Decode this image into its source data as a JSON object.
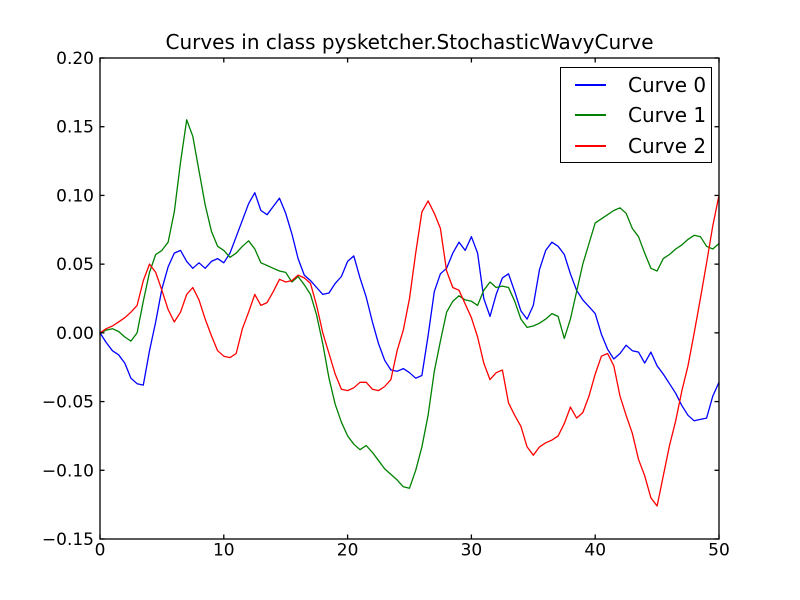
{
  "title": "Curves in class pysketcher.StochasticWavyCurve",
  "axes": {
    "x_tick_labels": [
      "0",
      "10",
      "20",
      "30",
      "40",
      "50"
    ],
    "y_tick_labels": [
      "0.20",
      "0.15",
      "0.10",
      "0.05",
      "0.00",
      "−0.05",
      "−0.10",
      "−0.15"
    ],
    "axis_color": "#000000",
    "background": "#ffffff"
  },
  "legend": {
    "position": "upper right",
    "entries": [
      {
        "label": "Curve 0",
        "color": "#0000ff"
      },
      {
        "label": "Curve 1",
        "color": "#008000"
      },
      {
        "label": "Curve 2",
        "color": "#ff0000"
      }
    ]
  },
  "chart_data": {
    "type": "line",
    "title": "Curves in class pysketcher.StochasticWavyCurve",
    "xlabel": "",
    "ylabel": "",
    "xlim": [
      0,
      50
    ],
    "ylim": [
      -0.15,
      0.2
    ],
    "x_ticks": [
      0,
      10,
      20,
      30,
      40,
      50
    ],
    "y_ticks": [
      0.2,
      0.15,
      0.1,
      0.05,
      0.0,
      -0.05,
      -0.1,
      -0.15
    ],
    "grid": false,
    "legend_position": "upper right",
    "x_start": 0,
    "x_step": 0.5,
    "series": [
      {
        "name": "Curve 0",
        "color": "#0000ff",
        "values": [
          0.0,
          -0.007,
          -0.013,
          -0.016,
          -0.022,
          -0.033,
          -0.037,
          -0.038,
          -0.013,
          0.008,
          0.032,
          0.048,
          0.058,
          0.06,
          0.052,
          0.047,
          0.051,
          0.047,
          0.052,
          0.054,
          0.051,
          0.058,
          0.07,
          0.082,
          0.094,
          0.102,
          0.089,
          0.086,
          0.092,
          0.098,
          0.087,
          0.072,
          0.054,
          0.042,
          0.038,
          0.033,
          0.028,
          0.029,
          0.036,
          0.041,
          0.052,
          0.056,
          0.04,
          0.026,
          0.008,
          -0.008,
          -0.02,
          -0.027,
          -0.028,
          -0.026,
          -0.029,
          -0.033,
          -0.031,
          -0.002,
          0.03,
          0.043,
          0.047,
          0.058,
          0.066,
          0.06,
          0.07,
          0.058,
          0.025,
          0.012,
          0.028,
          0.04,
          0.043,
          0.03,
          0.016,
          0.01,
          0.02,
          0.046,
          0.06,
          0.066,
          0.063,
          0.057,
          0.043,
          0.031,
          0.024,
          0.019,
          0.014,
          -0.001,
          -0.012,
          -0.019,
          -0.015,
          -0.009,
          -0.013,
          -0.014,
          -0.022,
          -0.014,
          -0.024,
          -0.03,
          -0.037,
          -0.044,
          -0.053,
          -0.06,
          -0.064,
          -0.063,
          -0.062,
          -0.046,
          -0.036
        ]
      },
      {
        "name": "Curve 1",
        "color": "#008000",
        "values": [
          0.0,
          0.002,
          0.003,
          0.001,
          -0.003,
          -0.006,
          0.0,
          0.023,
          0.044,
          0.057,
          0.06,
          0.066,
          0.088,
          0.124,
          0.155,
          0.143,
          0.118,
          0.093,
          0.074,
          0.063,
          0.06,
          0.055,
          0.058,
          0.063,
          0.067,
          0.061,
          0.051,
          0.049,
          0.047,
          0.045,
          0.044,
          0.037,
          0.041,
          0.035,
          0.028,
          0.013,
          -0.008,
          -0.033,
          -0.052,
          -0.065,
          -0.075,
          -0.081,
          -0.085,
          -0.082,
          -0.087,
          -0.093,
          -0.099,
          -0.103,
          -0.107,
          -0.112,
          -0.113,
          -0.1,
          -0.083,
          -0.06,
          -0.028,
          -0.006,
          0.015,
          0.023,
          0.027,
          0.024,
          0.023,
          0.02,
          0.031,
          0.037,
          0.033,
          0.034,
          0.033,
          0.023,
          0.01,
          0.004,
          0.005,
          0.007,
          0.01,
          0.014,
          0.012,
          -0.004,
          0.01,
          0.03,
          0.05,
          0.065,
          0.08,
          0.083,
          0.086,
          0.089,
          0.091,
          0.087,
          0.076,
          0.07,
          0.058,
          0.047,
          0.045,
          0.054,
          0.057,
          0.061,
          0.064,
          0.068,
          0.071,
          0.07,
          0.063,
          0.061,
          0.065
        ]
      },
      {
        "name": "Curve 2",
        "color": "#ff0000",
        "values": [
          0.0,
          0.003,
          0.005,
          0.008,
          0.011,
          0.015,
          0.02,
          0.038,
          0.05,
          0.044,
          0.031,
          0.017,
          0.008,
          0.015,
          0.028,
          0.033,
          0.024,
          0.01,
          -0.002,
          -0.013,
          -0.017,
          -0.018,
          -0.015,
          0.003,
          0.015,
          0.028,
          0.02,
          0.022,
          0.03,
          0.039,
          0.037,
          0.038,
          0.042,
          0.04,
          0.036,
          0.02,
          0.0,
          -0.015,
          -0.03,
          -0.041,
          -0.042,
          -0.04,
          -0.036,
          -0.036,
          -0.041,
          -0.042,
          -0.039,
          -0.034,
          -0.013,
          0.002,
          0.025,
          0.058,
          0.088,
          0.096,
          0.087,
          0.076,
          0.045,
          0.033,
          0.031,
          0.021,
          0.011,
          -0.003,
          -0.022,
          -0.034,
          -0.029,
          -0.027,
          -0.051,
          -0.06,
          -0.068,
          -0.083,
          -0.089,
          -0.083,
          -0.08,
          -0.078,
          -0.075,
          -0.066,
          -0.054,
          -0.062,
          -0.058,
          -0.046,
          -0.03,
          -0.017,
          -0.015,
          -0.024,
          -0.046,
          -0.06,
          -0.073,
          -0.092,
          -0.104,
          -0.12,
          -0.126,
          -0.104,
          -0.082,
          -0.064,
          -0.042,
          -0.024,
          0.0,
          0.025,
          0.051,
          0.078,
          0.1
        ]
      }
    ]
  }
}
